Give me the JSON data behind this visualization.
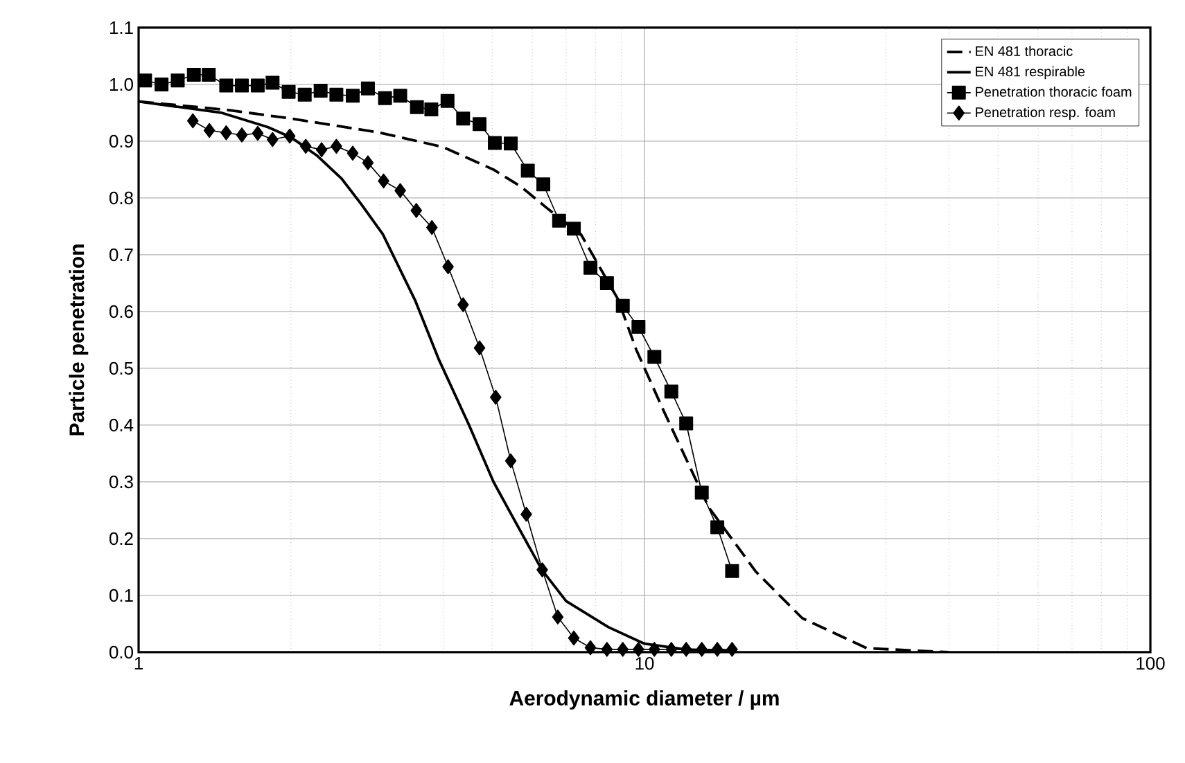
{
  "chart_data": {
    "type": "line",
    "xlabel": "Aerodynamic diameter / µm",
    "ylabel": "Particle penetration",
    "log": "x",
    "grid": true,
    "legend": "top right",
    "xlim": [
      1,
      100
    ],
    "xticks": [
      1,
      10,
      100
    ],
    "ylim": [
      0,
      1.1
    ],
    "yticks": [
      {
        "value": 0,
        "label": "0.0"
      },
      {
        "value": 0.1,
        "label": "0.1"
      },
      {
        "value": 0.2,
        "label": "0.2"
      },
      {
        "value": 0.3,
        "label": "0.3"
      },
      {
        "value": 0.4,
        "label": "0.4"
      },
      {
        "value": 0.5,
        "label": "0.5"
      },
      {
        "value": 0.6,
        "label": "0.6"
      },
      {
        "value": 0.7,
        "label": "0.7"
      },
      {
        "value": 0.8,
        "label": "0.8"
      },
      {
        "value": 0.9,
        "label": "0.9"
      },
      {
        "value": 1.0,
        "label": "1.0"
      },
      {
        "value": 1.1,
        "label": "1.1"
      }
    ],
    "series": [
      {
        "name": "EN 481 thoracic",
        "color": "#000000",
        "marker": "none",
        "line_style": "dashed",
        "x": [
          1,
          1.5,
          2,
          3,
          3.99,
          5.03,
          5.7,
          6.46,
          7.49,
          8.86,
          9.63,
          10.9,
          13.4,
          16.6,
          20.5,
          27.5,
          40
        ],
        "values": [
          0.97,
          0.955,
          0.94,
          0.915,
          0.89,
          0.85,
          0.82,
          0.78,
          0.736,
          0.622,
          0.533,
          0.426,
          0.255,
          0.142,
          0.06,
          0.007,
          0
        ]
      },
      {
        "name": "EN 481 respirable",
        "color": "#000000",
        "marker": "none",
        "line_style": "solid",
        "x": [
          1,
          1.46,
          1.8,
          2,
          2.25,
          2.52,
          2.75,
          3.04,
          3.52,
          3.92,
          4.5,
          5.03,
          5.42,
          6.27,
          7,
          8.49,
          10,
          12,
          15
        ],
        "values": [
          0.97,
          0.95,
          0.925,
          0.907,
          0.875,
          0.834,
          0.79,
          0.736,
          0.62,
          0.516,
          0.4,
          0.3,
          0.247,
          0.145,
          0.09,
          0.044,
          0.015,
          0.005,
          0.001
        ]
      },
      {
        "name": "Penetration thoracic foam",
        "color": "#000000",
        "marker": "square",
        "line_style": "solid",
        "x": [
          1.03,
          1.11,
          1.195,
          1.286,
          1.376,
          1.49,
          1.6,
          1.72,
          1.84,
          1.98,
          2.13,
          2.29,
          2.46,
          2.65,
          2.84,
          3.07,
          3.29,
          3.55,
          3.79,
          4.08,
          4.38,
          4.72,
          5.06,
          5.44,
          5.88,
          6.31,
          6.78,
          7.25,
          7.82,
          8.43,
          9.06,
          9.73,
          10.46,
          11.3,
          12.09,
          12.98,
          13.93,
          14.9
        ],
        "values": [
          1.007,
          1.0,
          1.007,
          1.017,
          1.017,
          0.998,
          0.998,
          0.998,
          1.003,
          0.987,
          0.982,
          0.989,
          0.982,
          0.98,
          0.993,
          0.976,
          0.98,
          0.96,
          0.956,
          0.971,
          0.94,
          0.93,
          0.897,
          0.896,
          0.848,
          0.824,
          0.76,
          0.746,
          0.677,
          0.65,
          0.61,
          0.573,
          0.52,
          0.459,
          0.403,
          0.281,
          0.22,
          0.143
        ]
      },
      {
        "name": "Penetration resp. foam",
        "color": "#000000",
        "marker": "diamond",
        "line_style": "solid",
        "x": [
          1.28,
          1.38,
          1.49,
          1.6,
          1.72,
          1.84,
          1.99,
          2.14,
          2.3,
          2.46,
          2.65,
          2.84,
          3.05,
          3.29,
          3.54,
          3.8,
          4.09,
          4.38,
          4.72,
          5.08,
          5.44,
          5.84,
          6.28,
          6.74,
          7.25,
          7.82,
          8.43,
          9.06,
          9.73,
          10.46,
          11.3,
          12.09,
          12.98,
          13.93,
          14.9
        ],
        "values": [
          0.936,
          0.919,
          0.915,
          0.911,
          0.914,
          0.903,
          0.909,
          0.891,
          0.885,
          0.891,
          0.879,
          0.862,
          0.83,
          0.813,
          0.778,
          0.748,
          0.679,
          0.612,
          0.536,
          0.449,
          0.337,
          0.243,
          0.145,
          0.062,
          0.025,
          0.008,
          0.005,
          0.005,
          0.005,
          0.005,
          0.005,
          0.005,
          0.005,
          0.005,
          0.005
        ]
      }
    ]
  }
}
